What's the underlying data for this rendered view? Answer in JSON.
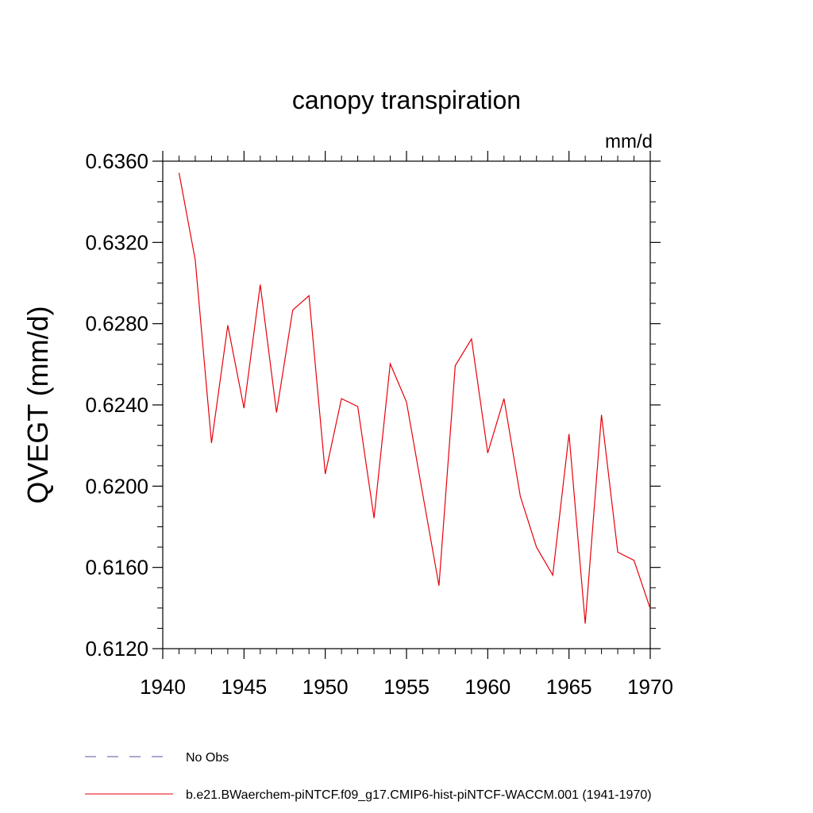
{
  "chart_data": {
    "type": "line",
    "title": "canopy transpiration",
    "units": "mm/d",
    "xlabel": "",
    "ylabel": "QVEGT  (mm/d)",
    "xlim": [
      1940,
      1970
    ],
    "ylim": [
      0.612,
      0.636
    ],
    "x_ticks": [
      "1940",
      "1945",
      "1950",
      "1955",
      "1960",
      "1965",
      "1970"
    ],
    "y_ticks": [
      "0.6120",
      "0.6160",
      "0.6200",
      "0.6240",
      "0.6280",
      "0.6320",
      "0.6360"
    ],
    "grid": false,
    "legend_position": "bottom",
    "series": [
      {
        "name": "b.e21.BWaerchem-piNTCF.f09_g17.CMIP6-hist-piNTCF-WACCM.001 (1941-1970)",
        "color": "#e8000b",
        "dash": "solid",
        "x": [
          1941,
          1942,
          1943,
          1944,
          1945,
          1946,
          1947,
          1948,
          1949,
          1950,
          1951,
          1952,
          1953,
          1954,
          1955,
          1956,
          1957,
          1958,
          1959,
          1960,
          1961,
          1962,
          1963,
          1964,
          1965,
          1966,
          1967,
          1968,
          1969,
          1970
        ],
        "values": [
          0.63543,
          0.63114,
          0.62212,
          0.62792,
          0.62384,
          0.62992,
          0.62363,
          0.62867,
          0.62938,
          0.6206,
          0.62431,
          0.62392,
          0.61843,
          0.62603,
          0.62414,
          0.61959,
          0.6151,
          0.62593,
          0.62725,
          0.62163,
          0.62431,
          0.61951,
          0.617,
          0.61562,
          0.62257,
          0.61323,
          0.62351,
          0.61675,
          0.61635,
          0.61397
        ]
      }
    ],
    "legend": [
      {
        "label": "No Obs",
        "color": "#5a4fa0",
        "dash": "dashed"
      },
      {
        "label": "b.e21.BWaerchem-piNTCF.f09_g17.CMIP6-hist-piNTCF-WACCM.001 (1941-1970)",
        "color": "#e8000b",
        "dash": "solid"
      }
    ]
  }
}
